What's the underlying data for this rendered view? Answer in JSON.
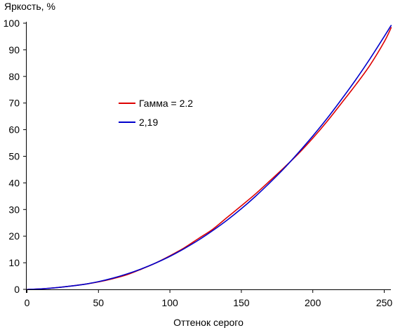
{
  "chart_data": {
    "type": "line",
    "title": "",
    "xlabel": "Оттенок серого",
    "ylabel": "Яркость, %",
    "xlim": [
      0,
      255
    ],
    "ylim": [
      0,
      100
    ],
    "x_ticks": [
      0,
      50,
      100,
      150,
      200,
      250
    ],
    "y_ticks": [
      0,
      10,
      20,
      30,
      40,
      50,
      60,
      70,
      80,
      90,
      100
    ],
    "grid": false,
    "legend_position": "center-left",
    "series": [
      {
        "name": "Гамма = 2.2",
        "color": "#dd0000",
        "x": [
          0,
          10,
          20,
          30,
          40,
          50,
          60,
          70,
          80,
          90,
          100,
          110,
          120,
          130,
          140,
          150,
          160,
          170,
          180,
          190,
          200,
          210,
          220,
          230,
          240,
          250,
          255
        ],
        "y": [
          0,
          0.2,
          0.6,
          1.2,
          1.9,
          2.8,
          4.0,
          5.5,
          7.6,
          9.9,
          12.6,
          15.6,
          19.1,
          22.6,
          27.0,
          31.4,
          35.9,
          40.8,
          45.8,
          51.0,
          56.8,
          63.1,
          69.9,
          76.8,
          84.2,
          93.0,
          98.5
        ]
      },
      {
        "name": "2,19",
        "color": "#0000cc",
        "x": [
          0,
          10,
          20,
          30,
          40,
          50,
          60,
          70,
          80,
          90,
          100,
          110,
          120,
          130,
          140,
          150,
          160,
          170,
          180,
          190,
          200,
          210,
          220,
          230,
          240,
          250,
          255
        ],
        "y": [
          0,
          0.2,
          0.6,
          1.2,
          1.9,
          2.9,
          4.2,
          5.8,
          7.7,
          9.9,
          12.4,
          15.3,
          18.5,
          22.1,
          26.0,
          30.3,
          35.0,
          40.1,
          45.5,
          51.4,
          57.6,
          64.2,
          71.3,
          78.7,
          86.6,
          95.0,
          99.3
        ]
      }
    ]
  }
}
